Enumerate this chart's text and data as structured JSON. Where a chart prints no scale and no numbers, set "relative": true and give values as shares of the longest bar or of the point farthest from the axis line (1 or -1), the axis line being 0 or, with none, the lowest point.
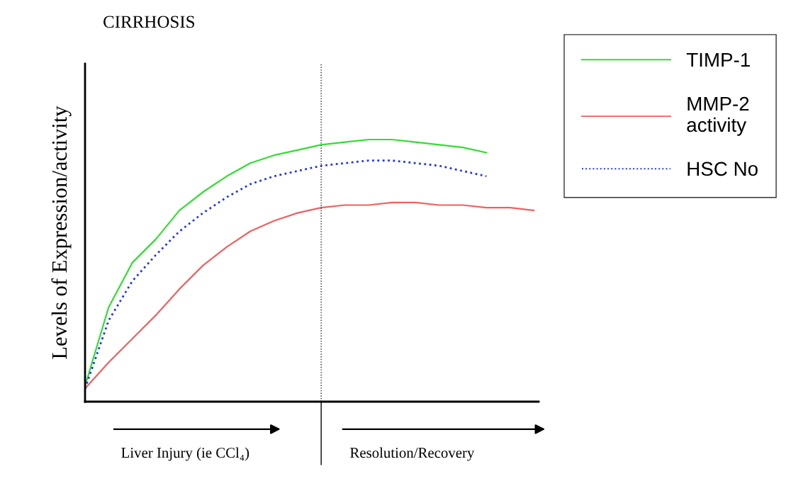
{
  "chart_data": {
    "type": "line",
    "title": "CIRRHOSIS",
    "ylabel": "Levels of Expression/activity",
    "relative": true,
    "legend": "top right",
    "grid": false,
    "categories": [
      null,
      null,
      null,
      null,
      null,
      null,
      null,
      null,
      null,
      null,
      null,
      null,
      null,
      null,
      null,
      null,
      null,
      null,
      null,
      null
    ],
    "series": [
      {
        "name": "TIMP-1",
        "color": "#33dd33",
        "line_style": "solid",
        "values": [
          0.06,
          0.36,
          0.53,
          0.62,
          0.73,
          0.8,
          0.86,
          0.91,
          0.94,
          0.96,
          0.98,
          0.99,
          1.0,
          1.0,
          0.99,
          0.98,
          0.97,
          0.95,
          null,
          null
        ]
      },
      {
        "name": "MMP-2\nactivity",
        "color": "#f06060",
        "line_style": "solid",
        "values": [
          0.05,
          0.15,
          0.24,
          0.33,
          0.43,
          0.52,
          0.59,
          0.65,
          0.69,
          0.72,
          0.74,
          0.75,
          0.75,
          0.76,
          0.76,
          0.75,
          0.75,
          0.74,
          0.74,
          0.73
        ]
      },
      {
        "name": "HSC No",
        "color": "#2233ee",
        "line_style": "dotted",
        "values": [
          0.05,
          0.31,
          0.46,
          0.56,
          0.65,
          0.72,
          0.78,
          0.83,
          0.86,
          0.88,
          0.9,
          0.91,
          0.92,
          0.92,
          0.91,
          0.9,
          0.88,
          0.86,
          null,
          null
        ]
      }
    ],
    "annotations": [
      "Liver Injury (ie CCl₄)",
      "Resolution/Recovery"
    ]
  }
}
